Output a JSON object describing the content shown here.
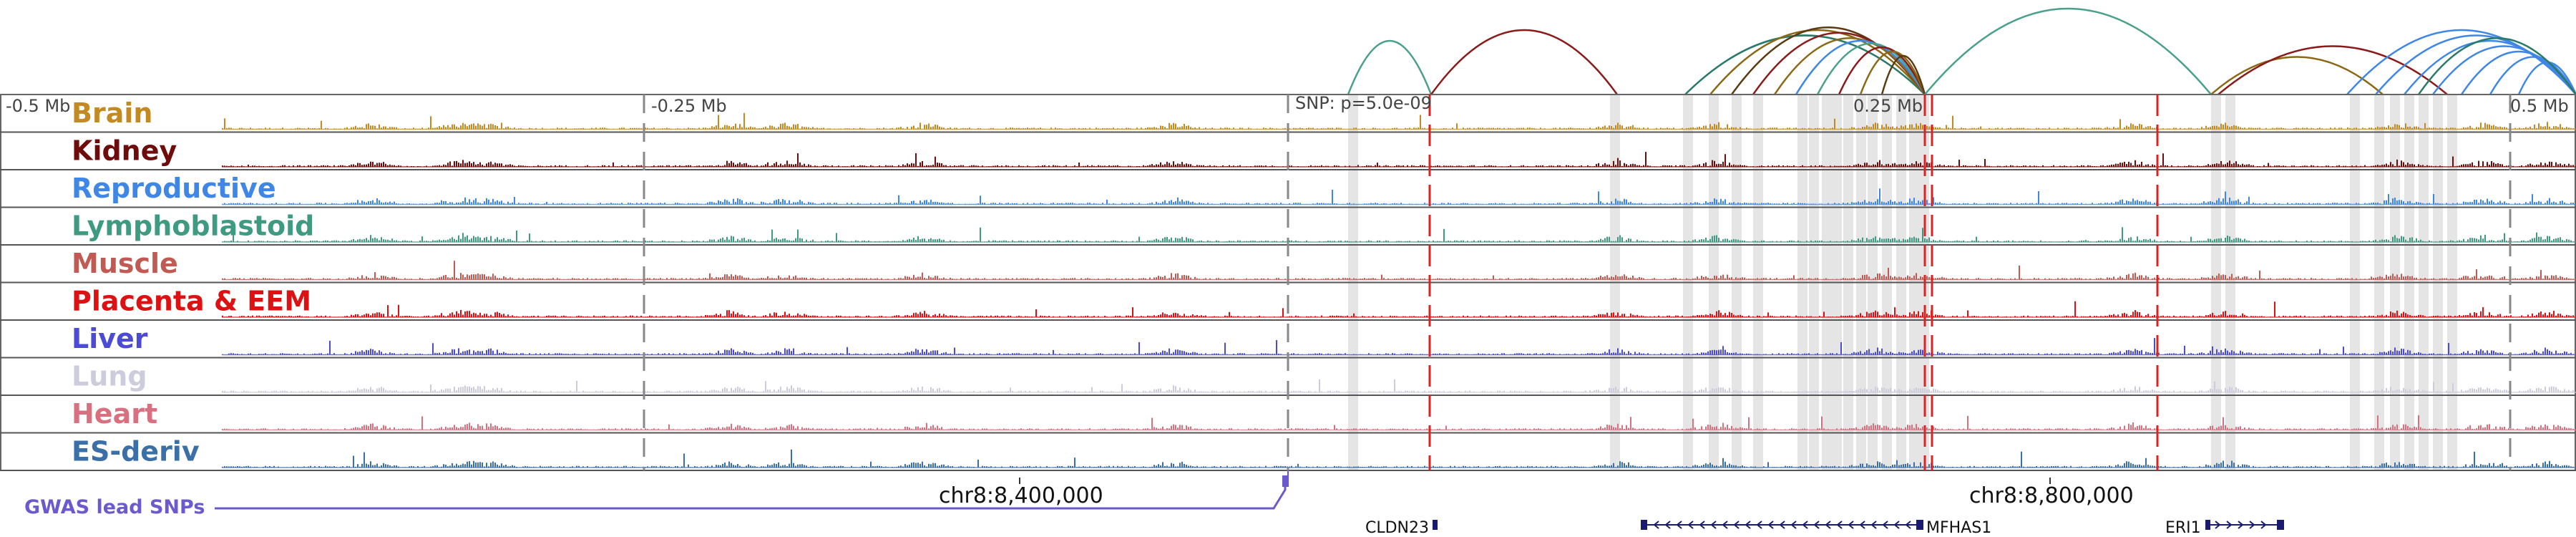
{
  "axis_labels": {
    "left": "-0.5 Mb",
    "q1": "-0.25 Mb",
    "snp": "SNP: p=5.0e-09",
    "q3": "0.25 Mb",
    "right": "0.5 Mb"
  },
  "tracks": [
    {
      "label": "Brain",
      "color": "#c48a22"
    },
    {
      "label": "Kidney",
      "color": "#6e0b0b"
    },
    {
      "label": "Reproductive",
      "color": "#3f87e6"
    },
    {
      "label": "Lymphoblastoid",
      "color": "#3f9a82"
    },
    {
      "label": "Muscle",
      "color": "#c05a52"
    },
    {
      "label": "Placenta & EEM",
      "color": "#dd1111"
    },
    {
      "label": "Liver",
      "color": "#4b4bd6"
    },
    {
      "label": "Lung",
      "color": "#ccccdd"
    },
    {
      "label": "Heart",
      "color": "#d97080"
    },
    {
      "label": "ES-deriv",
      "color": "#3b6fa8"
    }
  ],
  "gwas": {
    "label": "GWAS lead SNPs",
    "color": "#6a5acd"
  },
  "coordinates": [
    "chr8:8,400,000",
    "chr8:8,800,000"
  ],
  "genes": [
    "CLDN23",
    "MFHAS1",
    "ERI1"
  ],
  "arc_colors": [
    "#4aa08a",
    "#8b1a1a",
    "#8b6914",
    "#3f87e6",
    "#2a7a6a",
    "#5a3a10"
  ]
}
